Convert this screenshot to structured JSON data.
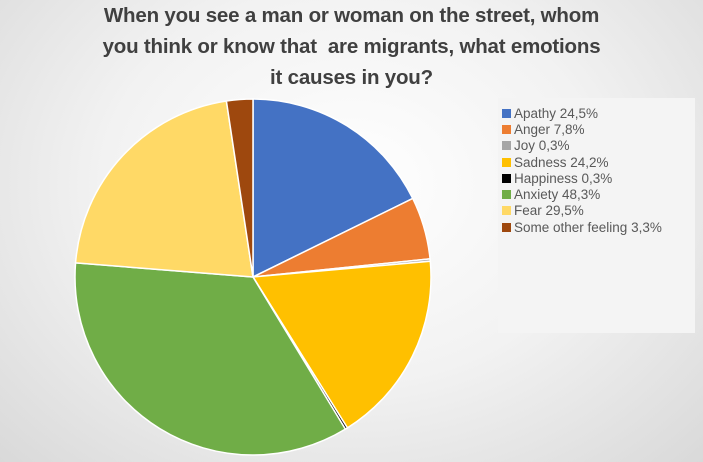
{
  "chart_data": {
    "type": "pie",
    "title_lines": [
      "When you see a man or woman on the street, whom",
      "you think or know that  are migrants, what emotions",
      "it causes in you?"
    ],
    "legend_position": "right",
    "slices": [
      {
        "name": "Apathy",
        "value": 24.5,
        "label": "Apathy 24,5%",
        "color": "#4472C4"
      },
      {
        "name": "Anger",
        "value": 7.8,
        "label": "Anger 7,8%",
        "color": "#ED7D31"
      },
      {
        "name": "Joy",
        "value": 0.3,
        "label": "Joy 0,3%",
        "color": "#A5A5A5"
      },
      {
        "name": "Sadness",
        "value": 24.2,
        "label": "Sadness 24,2%",
        "color": "#FFC000"
      },
      {
        "name": "Happiness",
        "value": 0.3,
        "label": "Happiness 0,3%",
        "color": "#000000"
      },
      {
        "name": "Anxiety",
        "value": 48.3,
        "label": "Anxiety 48,3%",
        "color": "#70AD47"
      },
      {
        "name": "Fear",
        "value": 29.5,
        "label": "Fear 29,5%",
        "color": "#FFD966"
      },
      {
        "name": "Some other feeling",
        "value": 3.3,
        "label": "Some other feeling 3,3%",
        "color": "#9E480E"
      }
    ]
  }
}
